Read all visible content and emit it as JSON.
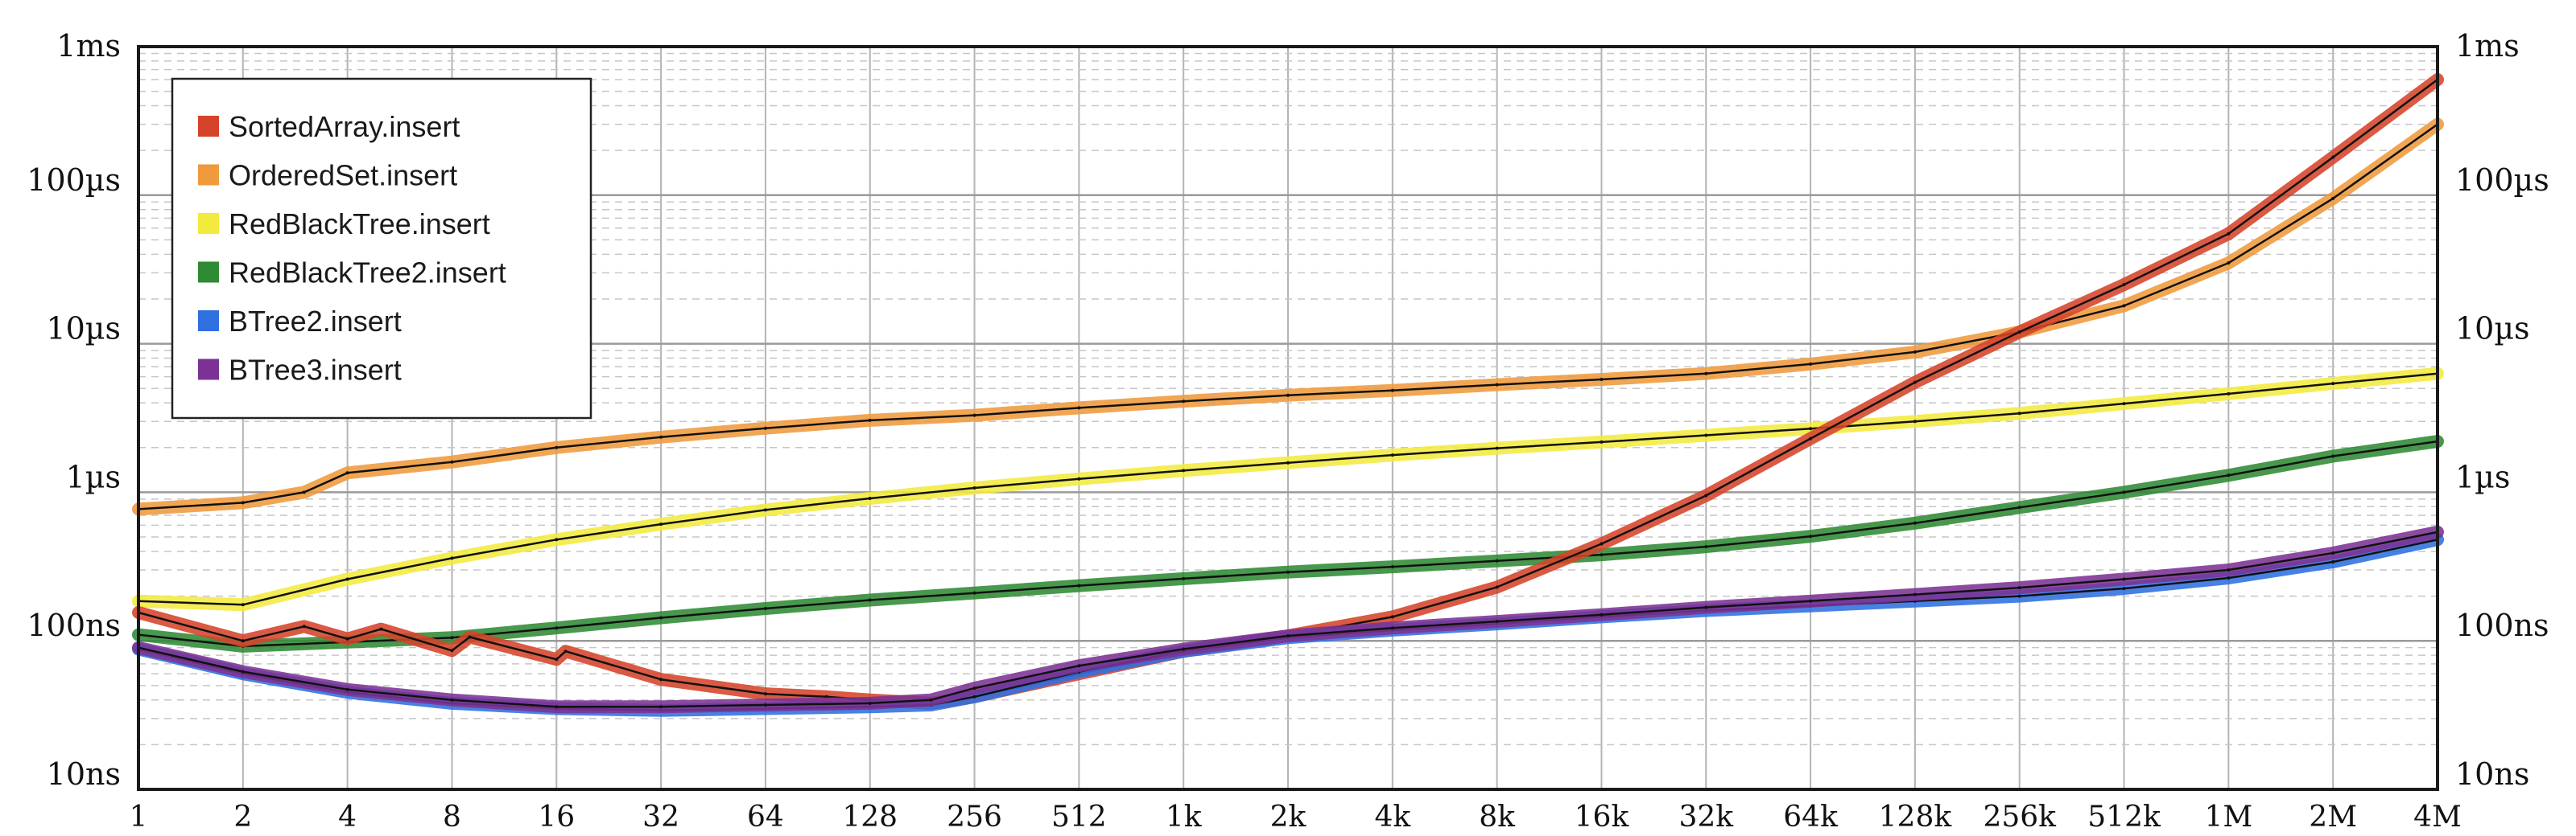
{
  "chart_data": {
    "type": "line",
    "title": "",
    "xlabel": "",
    "ylabel": "",
    "x_scale": "log2",
    "y_scale": "log10",
    "x_ticks": [
      "1",
      "2",
      "4",
      "8",
      "16",
      "32",
      "64",
      "128",
      "256",
      "512",
      "1k",
      "2k",
      "4k",
      "8k",
      "16k",
      "32k",
      "64k",
      "128k",
      "256k",
      "512k",
      "1M",
      "2M",
      "4M"
    ],
    "x_tick_values": [
      1,
      2,
      4,
      8,
      16,
      32,
      64,
      128,
      256,
      512,
      1024,
      2048,
      4096,
      8192,
      16384,
      32768,
      65536,
      131072,
      262144,
      524288,
      1048576,
      2097152,
      4194304
    ],
    "y_ticks": [
      "10ns",
      "100ns",
      "1µs",
      "10µs",
      "100µs",
      "1ms"
    ],
    "y_tick_values_ns": [
      10,
      100,
      1000,
      10000,
      100000,
      1000000
    ],
    "xlim": [
      1,
      4194304
    ],
    "ylim_ns": [
      10,
      1000000
    ],
    "grid": true,
    "legend_position": "top-left",
    "series": [
      {
        "name": "SortedArray.insert",
        "color": "#d5432a",
        "points": [
          [
            1,
            155
          ],
          [
            2,
            100
          ],
          [
            3,
            125
          ],
          [
            4,
            103
          ],
          [
            5,
            120
          ],
          [
            8,
            86
          ],
          [
            9,
            106
          ],
          [
            16,
            75
          ],
          [
            17,
            85
          ],
          [
            32,
            55
          ],
          [
            64,
            44
          ],
          [
            96,
            42
          ],
          [
            128,
            40
          ],
          [
            192,
            38
          ],
          [
            256,
            42
          ],
          [
            512,
            60
          ],
          [
            1024,
            85
          ],
          [
            2048,
            108
          ],
          [
            4096,
            145
          ],
          [
            8192,
            230
          ],
          [
            16384,
            450
          ],
          [
            32768,
            950
          ],
          [
            65536,
            2300
          ],
          [
            131072,
            5500
          ],
          [
            262144,
            12000
          ],
          [
            524288,
            25000
          ],
          [
            1048576,
            55000
          ],
          [
            2097152,
            180000
          ],
          [
            4194304,
            600000
          ]
        ]
      },
      {
        "name": "OrderedSet.insert",
        "color": "#ef9a3c",
        "points": [
          [
            1,
            770
          ],
          [
            2,
            850
          ],
          [
            3,
            1000
          ],
          [
            4,
            1350
          ],
          [
            8,
            1600
          ],
          [
            16,
            2000
          ],
          [
            32,
            2350
          ],
          [
            64,
            2700
          ],
          [
            128,
            3050
          ],
          [
            256,
            3300
          ],
          [
            512,
            3700
          ],
          [
            1024,
            4100
          ],
          [
            2048,
            4500
          ],
          [
            4096,
            4850
          ],
          [
            8192,
            5300
          ],
          [
            16384,
            5750
          ],
          [
            32768,
            6300
          ],
          [
            65536,
            7300
          ],
          [
            131072,
            8800
          ],
          [
            262144,
            12000
          ],
          [
            524288,
            18000
          ],
          [
            1048576,
            35000
          ],
          [
            2097152,
            95000
          ],
          [
            4194304,
            300000
          ]
        ]
      },
      {
        "name": "RedBlackTree.insert",
        "color": "#f2ea3d",
        "points": [
          [
            1,
            185
          ],
          [
            2,
            175
          ],
          [
            4,
            260
          ],
          [
            8,
            360
          ],
          [
            16,
            480
          ],
          [
            32,
            610
          ],
          [
            64,
            760
          ],
          [
            128,
            910
          ],
          [
            256,
            1070
          ],
          [
            512,
            1230
          ],
          [
            1024,
            1400
          ],
          [
            2048,
            1580
          ],
          [
            4096,
            1780
          ],
          [
            8192,
            1980
          ],
          [
            16384,
            2180
          ],
          [
            32768,
            2420
          ],
          [
            65536,
            2680
          ],
          [
            131072,
            3000
          ],
          [
            262144,
            3400
          ],
          [
            524288,
            3950
          ],
          [
            1048576,
            4600
          ],
          [
            2097152,
            5400
          ],
          [
            4194304,
            6300
          ]
        ]
      },
      {
        "name": "RedBlackTree2.insert",
        "color": "#2f8a34",
        "points": [
          [
            1,
            110
          ],
          [
            2,
            92
          ],
          [
            4,
            98
          ],
          [
            8,
            105
          ],
          [
            16,
            122
          ],
          [
            32,
            143
          ],
          [
            64,
            165
          ],
          [
            128,
            188
          ],
          [
            256,
            210
          ],
          [
            512,
            235
          ],
          [
            1024,
            262
          ],
          [
            2048,
            290
          ],
          [
            4096,
            315
          ],
          [
            8192,
            345
          ],
          [
            16384,
            380
          ],
          [
            32768,
            430
          ],
          [
            65536,
            505
          ],
          [
            131072,
            620
          ],
          [
            262144,
            790
          ],
          [
            524288,
            1000
          ],
          [
            1048576,
            1300
          ],
          [
            2097152,
            1750
          ],
          [
            4194304,
            2200
          ]
        ]
      },
      {
        "name": "BTree2.insert",
        "color": "#2f6fe0",
        "points": [
          [
            1,
            88
          ],
          [
            2,
            60
          ],
          [
            4,
            45
          ],
          [
            8,
            38
          ],
          [
            16,
            35
          ],
          [
            32,
            34
          ],
          [
            64,
            35
          ],
          [
            128,
            36
          ],
          [
            192,
            37
          ],
          [
            256,
            42
          ],
          [
            512,
            62
          ],
          [
            1024,
            85
          ],
          [
            2048,
            105
          ],
          [
            4096,
            118
          ],
          [
            8192,
            130
          ],
          [
            16384,
            145
          ],
          [
            32768,
            160
          ],
          [
            65536,
            172
          ],
          [
            131072,
            185
          ],
          [
            262144,
            200
          ],
          [
            524288,
            225
          ],
          [
            1048576,
            265
          ],
          [
            2097152,
            340
          ],
          [
            4194304,
            480
          ]
        ]
      },
      {
        "name": "BTree3.insert",
        "color": "#7b3294",
        "points": [
          [
            1,
            90
          ],
          [
            2,
            62
          ],
          [
            4,
            47
          ],
          [
            8,
            40
          ],
          [
            16,
            36
          ],
          [
            32,
            36
          ],
          [
            64,
            37
          ],
          [
            128,
            38
          ],
          [
            192,
            40
          ],
          [
            256,
            48
          ],
          [
            512,
            68
          ],
          [
            1024,
            88
          ],
          [
            2048,
            108
          ],
          [
            4096,
            122
          ],
          [
            8192,
            135
          ],
          [
            16384,
            150
          ],
          [
            32768,
            168
          ],
          [
            65536,
            185
          ],
          [
            131072,
            205
          ],
          [
            262144,
            228
          ],
          [
            524288,
            260
          ],
          [
            1048576,
            300
          ],
          [
            2097152,
            390
          ],
          [
            4194304,
            540
          ]
        ]
      }
    ]
  }
}
